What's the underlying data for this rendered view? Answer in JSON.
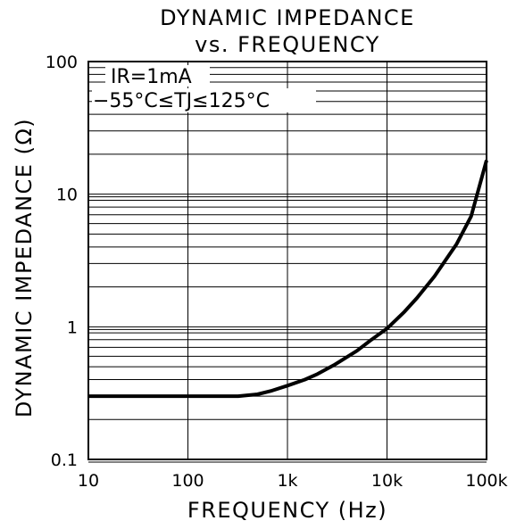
{
  "chart_data": {
    "type": "line",
    "title": "DYNAMIC IMPEDANCE",
    "subtitle": "vs. FREQUENCY",
    "xlabel": "FREQUENCY (Hz)",
    "ylabel": "DYNAMIC IMPEDANCE (Ω)",
    "x_scale": "log",
    "y_scale": "log",
    "xlim": [
      10,
      100000
    ],
    "ylim": [
      0.1,
      100
    ],
    "x_ticks": [
      10,
      100,
      1000,
      10000,
      100000
    ],
    "x_tick_labels": [
      "10",
      "100",
      "1k",
      "10k",
      "100k"
    ],
    "y_ticks": [
      0.1,
      1,
      10,
      100
    ],
    "y_tick_labels": [
      "0.1",
      "1",
      "10",
      "100"
    ],
    "grid": true,
    "annotations": [
      "IR=1mA",
      "−55°C≤TJ≤125°C"
    ],
    "series": [
      {
        "x": [
          10,
          20,
          50,
          100,
          200,
          320,
          500,
          700,
          1000,
          1500,
          2000,
          3000,
          5000,
          7000,
          10000,
          15000,
          20000,
          30000,
          50000,
          70000,
          100000
        ],
        "y": [
          0.3,
          0.3,
          0.3,
          0.3,
          0.3,
          0.3,
          0.31,
          0.33,
          0.36,
          0.4,
          0.44,
          0.52,
          0.66,
          0.8,
          0.97,
          1.3,
          1.65,
          2.4,
          4.2,
          6.8,
          18
        ]
      }
    ]
  }
}
